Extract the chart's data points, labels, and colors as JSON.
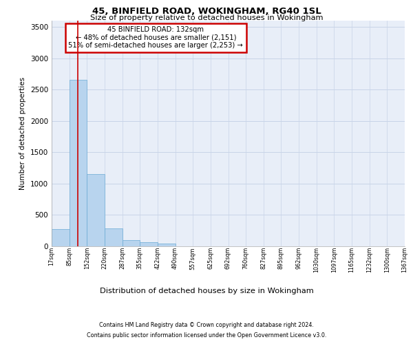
{
  "title1": "45, BINFIELD ROAD, WOKINGHAM, RG40 1SL",
  "title2": "Size of property relative to detached houses in Wokingham",
  "xlabel": "Distribution of detached houses by size in Wokingham",
  "ylabel": "Number of detached properties",
  "bar_values": [
    270,
    2650,
    1150,
    285,
    90,
    55,
    35,
    0,
    0,
    0,
    0,
    0,
    0,
    0,
    0,
    0,
    0,
    0,
    0,
    0
  ],
  "bar_labels": [
    "17sqm",
    "85sqm",
    "152sqm",
    "220sqm",
    "287sqm",
    "355sqm",
    "422sqm",
    "490sqm",
    "557sqm",
    "625sqm",
    "692sqm",
    "760sqm",
    "827sqm",
    "895sqm",
    "962sqm",
    "1030sqm",
    "1097sqm",
    "1165sqm",
    "1232sqm",
    "1300sqm",
    "1367sqm"
  ],
  "bar_color": "#b8d4ee",
  "bar_edge_color": "#6aaad4",
  "bg_color": "#e8eef8",
  "grid_color": "#c8d4e8",
  "red_line_x": 1.5,
  "annotation_title": "45 BINFIELD ROAD: 132sqm",
  "annotation_line1": "← 48% of detached houses are smaller (2,151)",
  "annotation_line2": "51% of semi-detached houses are larger (2,253) →",
  "annotation_box_color": "#ffffff",
  "annotation_box_edge": "#cc0000",
  "ylim": [
    0,
    3600
  ],
  "yticks": [
    0,
    500,
    1000,
    1500,
    2000,
    2500,
    3000,
    3500
  ],
  "footer1": "Contains HM Land Registry data © Crown copyright and database right 2024.",
  "footer2": "Contains public sector information licensed under the Open Government Licence v3.0."
}
